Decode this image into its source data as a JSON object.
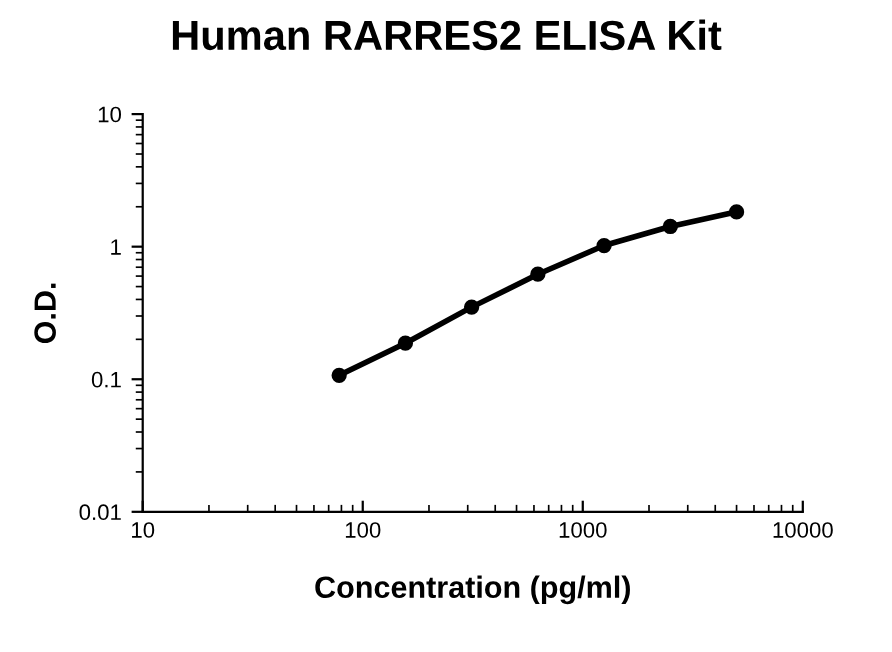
{
  "chart_data": {
    "type": "line",
    "title": "Human RARRES2 ELISA Kit",
    "xlabel": "Concentration (pg/ml)",
    "ylabel": "O.D.",
    "x": [
      78.125,
      156.25,
      312.5,
      625,
      1250,
      2500,
      5000
    ],
    "series": [
      {
        "color": "#000000",
        "values": [
          0.107,
          0.187,
          0.35,
          0.62,
          1.02,
          1.42,
          1.83
        ]
      }
    ],
    "log": "xy",
    "xlim": [
      10,
      10000
    ],
    "ylim": [
      0.01,
      10
    ],
    "xticks": [
      10,
      100,
      1000,
      10000
    ],
    "yticks": [
      0.01,
      0.1,
      1,
      10
    ],
    "marker": "circle",
    "line_style": "solid",
    "grid": false,
    "legend": false
  }
}
